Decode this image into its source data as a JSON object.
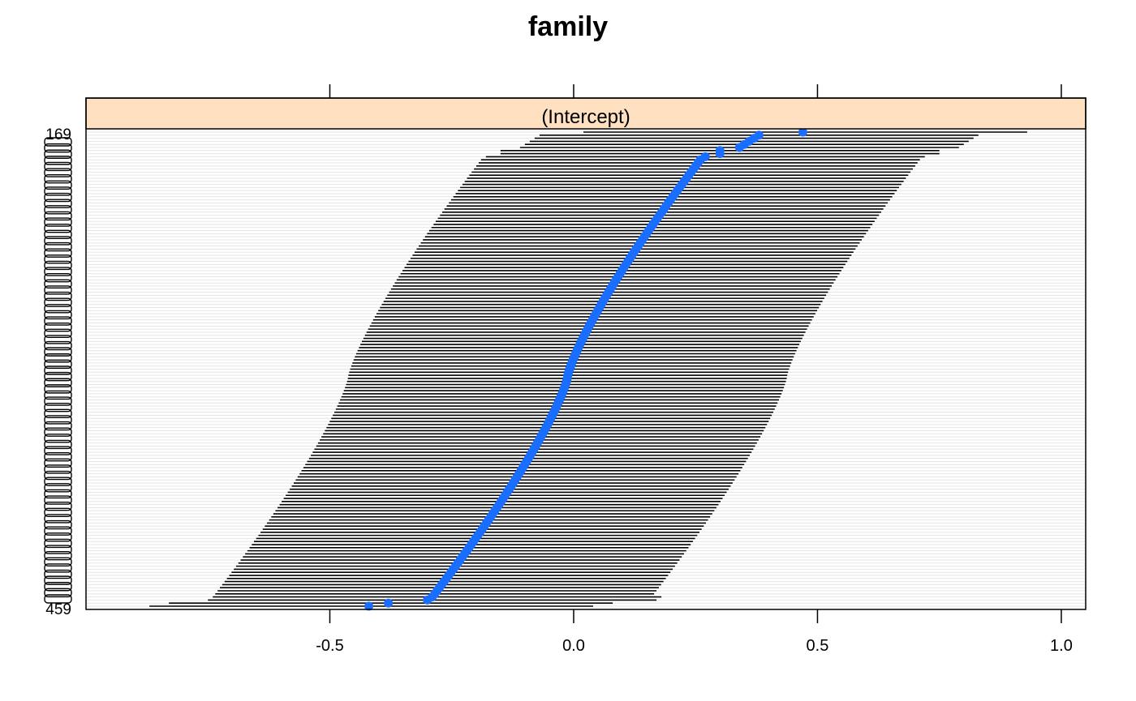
{
  "chart_data": {
    "type": "dotplot",
    "title": "family",
    "strip_label": "(Intercept)",
    "strip_color": "#ffe0c0",
    "point_color": "#1a6eff",
    "grid_color": "#e6e6e6",
    "xlim": [
      -1.0,
      1.05
    ],
    "x_ticks": [
      -0.5,
      0.0,
      0.5,
      1.0
    ],
    "x_tick_labels": [
      "-0.5",
      "0.0",
      "0.5",
      "1.0"
    ],
    "n_rows": 155,
    "row_labels_visible": [
      "169",
      "459"
    ],
    "first_rows": [
      {
        "estimate": 0.47,
        "lower": 0.02,
        "upper": 0.93
      },
      {
        "estimate": 0.38,
        "lower": -0.07,
        "upper": 0.83
      },
      {
        "estimate": 0.37,
        "lower": -0.08,
        "upper": 0.82
      },
      {
        "estimate": 0.36,
        "lower": -0.09,
        "upper": 0.81
      },
      {
        "estimate": 0.35,
        "lower": -0.1,
        "upper": 0.8
      },
      {
        "estimate": 0.34,
        "lower": -0.11,
        "upper": 0.79
      },
      {
        "estimate": 0.3,
        "lower": -0.15,
        "upper": 0.75
      },
      {
        "estimate": 0.3,
        "lower": -0.15,
        "upper": 0.75
      },
      {
        "estimate": 0.27,
        "lower": -0.18,
        "upper": 0.72
      }
    ],
    "last_rows": [
      {
        "estimate": -0.29,
        "lower": -0.74,
        "upper": 0.18
      },
      {
        "estimate": -0.3,
        "lower": -0.75,
        "upper": 0.17
      },
      {
        "estimate": -0.38,
        "lower": -0.83,
        "upper": 0.08
      },
      {
        "estimate": -0.42,
        "lower": -0.87,
        "upper": 0.04
      }
    ],
    "middle_estimate_range": [
      0.26,
      -0.285
    ],
    "interval_half_width": 0.45
  }
}
